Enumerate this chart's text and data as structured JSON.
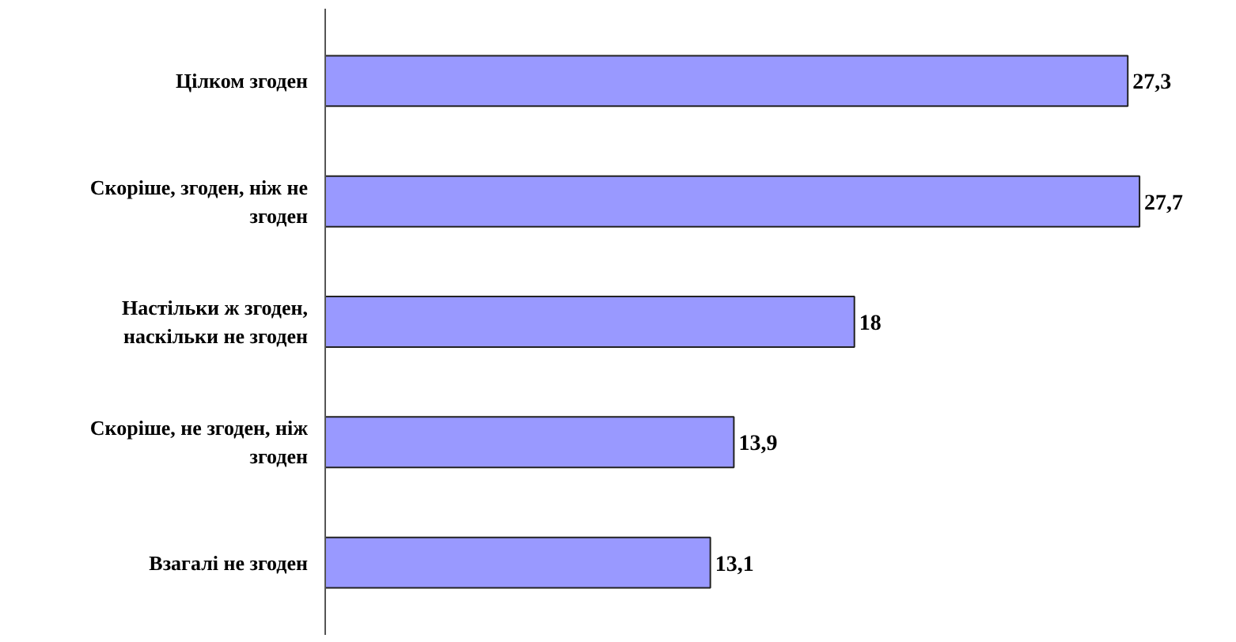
{
  "chart_data": {
    "type": "bar",
    "orientation": "horizontal",
    "categories": [
      "Цілком згоден",
      "Скоріше, згоден, ніж не згоден",
      "Настільки ж згоден, наскільки не згоден",
      "Скоріше, не згоден, ніж згоден",
      "Взагалі не згоден"
    ],
    "values": [
      27.3,
      27.7,
      18,
      13.9,
      13.1
    ],
    "value_labels": [
      "27,3",
      "27,7",
      "18",
      "13,9",
      "13,1"
    ],
    "color": "#9999ff",
    "tick_labels": "y",
    "grid": false
  }
}
